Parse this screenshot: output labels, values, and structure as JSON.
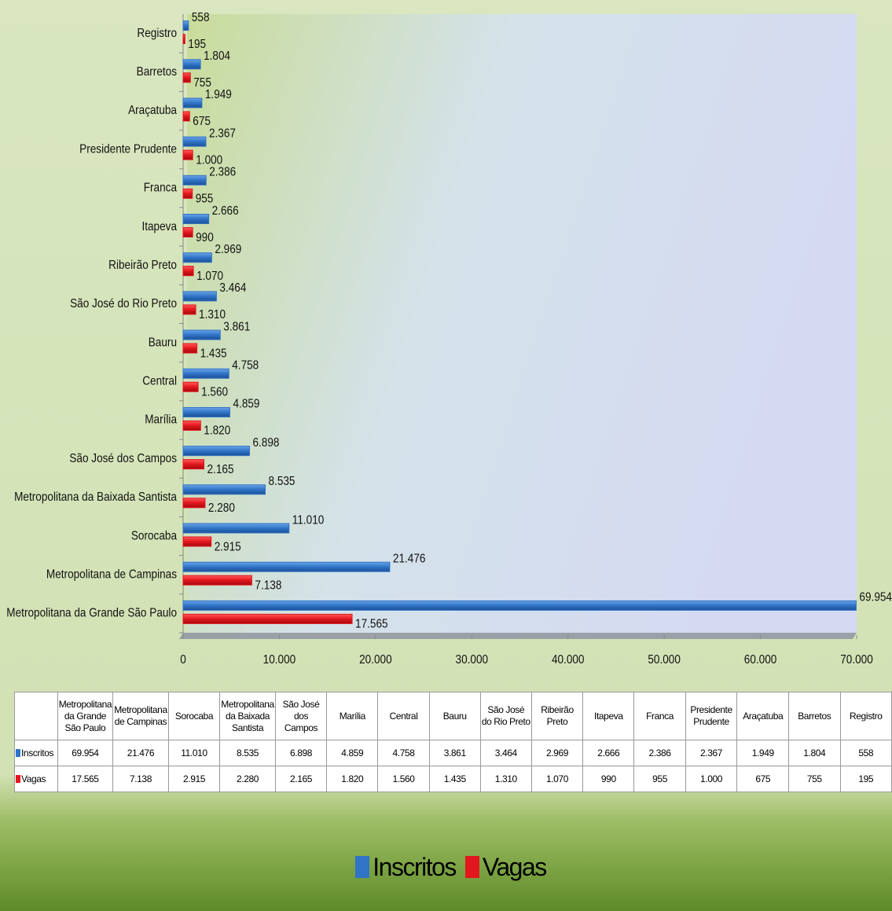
{
  "chart_data": {
    "type": "bar",
    "orientation": "horizontal",
    "categories": [
      "Metropolitana da Grande São Paulo",
      "Metropolitana de Campinas",
      "Sorocaba",
      "Metropolitana da Baixada Santista",
      "São José dos Campos",
      "Marília",
      "Central",
      "Bauru",
      "São José do Rio Preto",
      "Ribeirão Preto",
      "Itapeva",
      "Franca",
      "Presidente Prudente",
      "Araçatuba",
      "Barretos",
      "Registro"
    ],
    "series": [
      {
        "name": "Inscritos",
        "color": "#2f74c6",
        "values": [
          69954,
          21476,
          11010,
          8535,
          6898,
          4859,
          4758,
          3861,
          3464,
          2969,
          2666,
          2386,
          2367,
          1949,
          1804,
          558
        ],
        "value_labels": [
          "69.954",
          "21.476",
          "11.010",
          "8.535",
          "6.898",
          "4.859",
          "4.758",
          "3.861",
          "3.464",
          "2.969",
          "2.666",
          "2.386",
          "2.367",
          "1.949",
          "1.804",
          "558"
        ]
      },
      {
        "name": "Vagas",
        "color": "#e3161e",
        "values": [
          17565,
          7138,
          2915,
          2280,
          2165,
          1820,
          1560,
          1435,
          1310,
          1070,
          990,
          955,
          1000,
          675,
          755,
          195
        ],
        "value_labels": [
          "17.565",
          "7.138",
          "2.915",
          "2.280",
          "2.165",
          "1.820",
          "1.560",
          "1.435",
          "1.310",
          "1.070",
          "990",
          "955",
          "1.000",
          "675",
          "755",
          "195"
        ]
      }
    ],
    "xlim": [
      0,
      70000
    ],
    "xticks": [
      0,
      {
        "value": 10000,
        "label": "10.000"
      },
      {
        "value": 20000,
        "label": "20.000"
      },
      {
        "value": 30000,
        "label": "30.000"
      },
      {
        "value": 40000,
        "label": "40.000"
      },
      {
        "value": 50000,
        "label": "50.000"
      },
      {
        "value": 60000,
        "label": "60.000"
      },
      {
        "value": 70000,
        "label": "70.000"
      }
    ],
    "legend": "bottom",
    "data_table": true
  }
}
